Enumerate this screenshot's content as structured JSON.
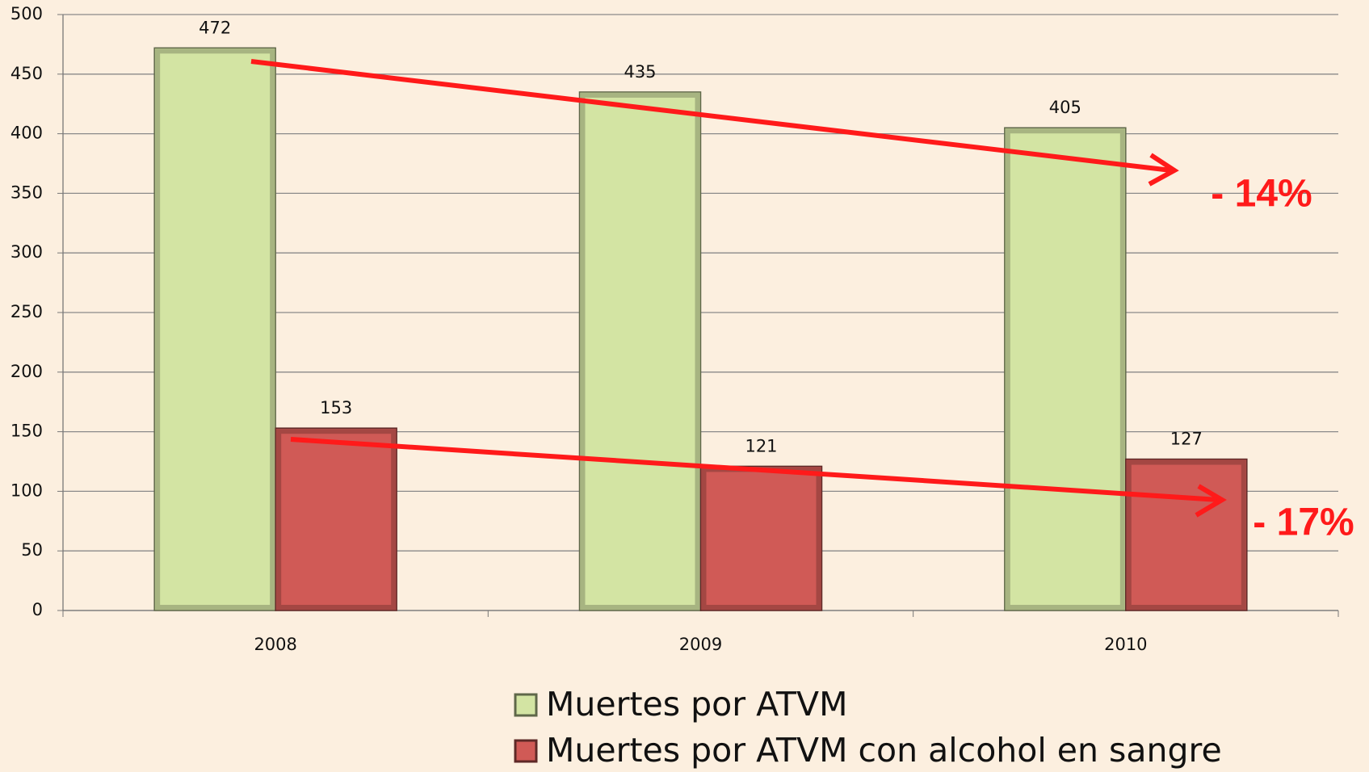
{
  "chart_data": {
    "type": "bar",
    "categories": [
      "2008",
      "2009",
      "2010"
    ],
    "series": [
      {
        "name": "Muertes por ATVM",
        "color": "#d3e4a3",
        "values": [
          472,
          435,
          405
        ]
      },
      {
        "name": "Muertes por ATVM con alcohol en sangre",
        "color": "#d05a56",
        "values": [
          153,
          121,
          127
        ]
      }
    ],
    "ylim": [
      0,
      500
    ],
    "yticks": [
      0,
      50,
      100,
      150,
      200,
      250,
      300,
      350,
      400,
      450,
      500
    ],
    "grid": true,
    "annotations": [
      "- 14%",
      "- 17%"
    ],
    "legend": "bottom"
  }
}
